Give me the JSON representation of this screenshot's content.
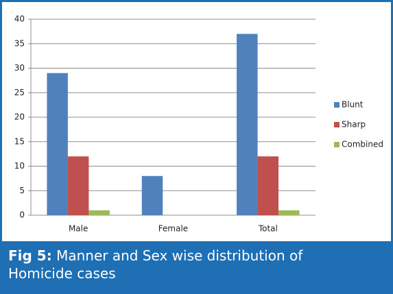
{
  "chart_data": {
    "type": "bar",
    "categories": [
      "Male",
      "Female",
      "Total"
    ],
    "series": [
      {
        "name": "Blunt",
        "color": "#4f81bd",
        "values": [
          29,
          8,
          37
        ]
      },
      {
        "name": "Sharp",
        "color": "#c0504d",
        "values": [
          12,
          0,
          12
        ]
      },
      {
        "name": "Combined",
        "color": "#9bbb59",
        "values": [
          1,
          0,
          1
        ]
      }
    ],
    "ylim": [
      0,
      40
    ],
    "yticks": [
      0,
      5,
      10,
      15,
      20,
      25,
      30,
      35,
      40
    ],
    "grid": true,
    "legend": "right",
    "caption": {
      "label": "Fig 5:",
      "text": "Manner and Sex wise distribution of Homicide cases"
    }
  }
}
